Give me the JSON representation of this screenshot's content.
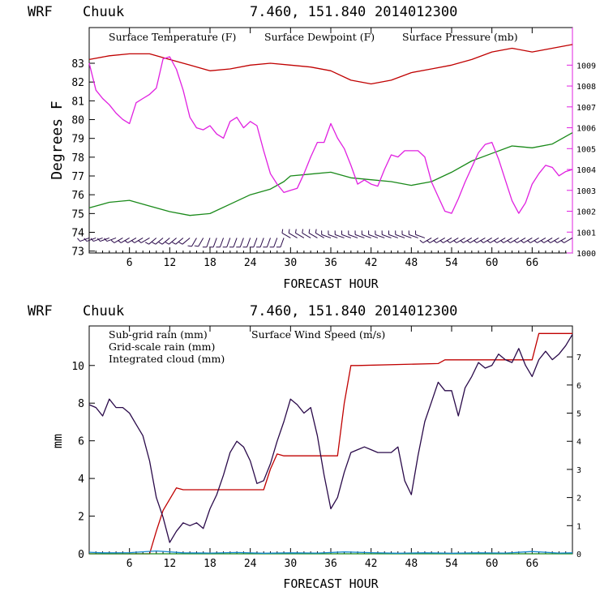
{
  "chart_data": [
    {
      "type": "line",
      "header": {
        "model": "WRF",
        "location": "Chuuk",
        "coords": "7.460, 151.840",
        "init": "2014012300"
      },
      "xlabel": "FORECAST HOUR",
      "ylabel": "Degrees F",
      "xlim": [
        0,
        72
      ],
      "xticks": [
        "6",
        "12",
        "18",
        "24",
        "30",
        "36",
        "42",
        "48",
        "54",
        "60",
        "66"
      ],
      "ylim": [
        72.9,
        84.9
      ],
      "yticks": [
        "73",
        "74",
        "75",
        "76",
        "77",
        "78",
        "79",
        "80",
        "81",
        "82",
        "83"
      ],
      "y2lim": [
        1000,
        1010.8
      ],
      "y2ticks": [
        "1000",
        "1001",
        "1002",
        "1003",
        "1004",
        "1005",
        "1006",
        "1007",
        "1008",
        "1009"
      ],
      "legend": [
        "Surface Temperature (F)",
        "Surface Dewpoint (F)",
        "Surface Pressure (mb)"
      ],
      "colors": {
        "temperature": "#c00000",
        "dewpoint": "#1a8a1a",
        "pressure": "#e020e0",
        "barbs": "#2a0a4a"
      },
      "series": [
        {
          "name": "Surface Temperature (F)",
          "axis": "left",
          "x": [
            0,
            3,
            6,
            9,
            12,
            15,
            18,
            21,
            24,
            27,
            30,
            33,
            36,
            39,
            42,
            45,
            48,
            51,
            54,
            57,
            60,
            63,
            66,
            69,
            72
          ],
          "values": [
            83.2,
            83.4,
            83.5,
            83.5,
            83.2,
            82.9,
            82.6,
            82.7,
            82.9,
            83.0,
            82.9,
            82.8,
            82.6,
            82.1,
            81.9,
            82.1,
            82.5,
            82.7,
            82.9,
            83.2,
            83.6,
            83.8,
            83.6,
            83.8,
            84.0
          ]
        },
        {
          "name": "Surface Dewpoint (F)",
          "axis": "left",
          "x": [
            0,
            3,
            6,
            9,
            12,
            15,
            18,
            21,
            24,
            27,
            29,
            30,
            33,
            36,
            39,
            42,
            45,
            48,
            51,
            54,
            57,
            60,
            63,
            66,
            69,
            72
          ],
          "values": [
            75.3,
            75.6,
            75.7,
            75.4,
            75.1,
            74.9,
            75.0,
            75.5,
            76.0,
            76.3,
            76.7,
            77.0,
            77.1,
            77.2,
            76.9,
            76.8,
            76.7,
            76.5,
            76.7,
            77.2,
            77.8,
            78.2,
            78.6,
            78.5,
            78.7,
            79.3
          ]
        },
        {
          "name": "Surface Pressure (mb)",
          "axis": "right",
          "x": [
            0,
            1,
            2,
            3,
            4,
            5,
            6,
            7,
            8,
            9,
            10,
            11,
            12,
            13,
            14,
            15,
            16,
            17,
            18,
            19,
            20,
            21,
            22,
            23,
            24,
            25,
            26,
            27,
            28,
            29,
            30,
            31,
            32,
            33,
            34,
            35,
            36,
            37,
            38,
            39,
            40,
            41,
            42,
            43,
            44,
            45,
            46,
            47,
            48,
            49,
            50,
            51,
            52,
            53,
            54,
            55,
            56,
            57,
            58,
            59,
            60,
            61,
            62,
            63,
            64,
            65,
            66,
            67,
            68,
            69,
            70,
            71,
            72
          ],
          "values": [
            1009.1,
            1007.8,
            1007.4,
            1007.1,
            1006.7,
            1006.4,
            1006.2,
            1007.2,
            1007.4,
            1007.6,
            1007.9,
            1009.3,
            1009.4,
            1008.8,
            1007.8,
            1006.5,
            1006.0,
            1005.9,
            1006.1,
            1005.7,
            1005.5,
            1006.3,
            1006.5,
            1006.0,
            1006.3,
            1006.1,
            1004.9,
            1003.8,
            1003.3,
            1002.9,
            1003.0,
            1003.1,
            1003.8,
            1004.6,
            1005.3,
            1005.3,
            1006.2,
            1005.5,
            1005.0,
            1004.2,
            1003.3,
            1003.5,
            1003.3,
            1003.2,
            1004.0,
            1004.7,
            1004.6,
            1004.9,
            1004.9,
            1004.9,
            1004.6,
            1003.4,
            1002.7,
            1002.0,
            1001.9,
            1002.6,
            1003.4,
            1004.1,
            1004.8,
            1005.2,
            1005.3,
            1004.5,
            1003.5,
            1002.5,
            1001.9,
            1002.4,
            1003.3,
            1003.8,
            1004.2,
            1004.1,
            1003.7,
            1003.9,
            1004.0
          ]
        }
      ],
      "wind_barbs": {
        "level_y": 73.7,
        "x": [
          0,
          1,
          2,
          3,
          4,
          5,
          6,
          7,
          8,
          9,
          10,
          11,
          12,
          13,
          14,
          15,
          16,
          17,
          18,
          19,
          20,
          21,
          22,
          23,
          24,
          25,
          26,
          27,
          28,
          29,
          30,
          31,
          32,
          33,
          34,
          35,
          36,
          37,
          38,
          39,
          40,
          41,
          42,
          43,
          44,
          45,
          46,
          47,
          48,
          49,
          50,
          51,
          52,
          53,
          54,
          55,
          56,
          57,
          58,
          59,
          60,
          61,
          62,
          63,
          64,
          65,
          66,
          67,
          68,
          69,
          70,
          71,
          72
        ],
        "directions_deg": [
          250,
          250,
          250,
          250,
          250,
          240,
          240,
          240,
          240,
          240,
          230,
          230,
          230,
          230,
          230,
          230,
          210,
          210,
          200,
          200,
          200,
          200,
          200,
          200,
          200,
          200,
          200,
          200,
          200,
          200,
          300,
          300,
          300,
          300,
          300,
          300,
          290,
          290,
          290,
          290,
          290,
          290,
          290,
          290,
          290,
          290,
          290,
          290,
          290,
          290,
          290,
          240,
          240,
          240,
          240,
          240,
          240,
          240,
          240,
          240,
          240,
          240,
          240,
          240,
          240,
          240,
          240,
          240,
          240,
          240,
          240,
          240,
          240
        ]
      }
    },
    {
      "type": "line",
      "header": {
        "model": "WRF",
        "location": "Chuuk",
        "coords": "7.460, 151.840",
        "init": "2014012300"
      },
      "xlabel": "FORECAST HOUR",
      "ylabel": "mm",
      "xlim": [
        0,
        72
      ],
      "xticks": [
        "6",
        "12",
        "18",
        "24",
        "30",
        "36",
        "42",
        "48",
        "54",
        "60",
        "66"
      ],
      "ylim": [
        0,
        12.1
      ],
      "yticks": [
        "0",
        "2",
        "4",
        "6",
        "8",
        "10"
      ],
      "y2lim": [
        0,
        8.1
      ],
      "y2ticks": [
        "0",
        "1",
        "2",
        "3",
        "4",
        "5",
        "6",
        "7"
      ],
      "legend": [
        "Sub-grid rain (mm)",
        "Grid-scale rain (mm)",
        "Integrated cloud (mm)",
        "Surface Wind Speed (m/s)"
      ],
      "colors": {
        "subgrid": "#c00000",
        "gridscale": "#1a8a1a",
        "cloud": "#1a8ad0",
        "wind": "#2a0a4a"
      },
      "series": [
        {
          "name": "Sub-grid rain (mm)",
          "axis": "left",
          "x": [
            0,
            9,
            10,
            11,
            12,
            13,
            14,
            26,
            27,
            28,
            29,
            37,
            38,
            39,
            40,
            52,
            53,
            66,
            67,
            72
          ],
          "values": [
            0,
            0,
            1.2,
            2.3,
            2.9,
            3.5,
            3.4,
            3.4,
            4.5,
            5.3,
            5.2,
            5.2,
            8.0,
            10.0,
            10.0,
            10.1,
            10.3,
            10.3,
            11.7,
            11.7
          ]
        },
        {
          "name": "Grid-scale rain (mm)",
          "axis": "left",
          "x": [
            0,
            72
          ],
          "values": [
            0,
            0
          ]
        },
        {
          "name": "Integrated cloud (mm)",
          "axis": "left",
          "x": [
            0,
            2,
            6,
            10,
            14,
            18,
            22,
            26,
            30,
            34,
            38,
            42,
            46,
            50,
            54,
            58,
            62,
            66,
            70,
            72
          ],
          "values": [
            0.08,
            0.05,
            0.06,
            0.15,
            0.05,
            0.04,
            0.07,
            0.03,
            0.05,
            0.04,
            0.1,
            0.06,
            0.03,
            0.05,
            0.03,
            0.05,
            0.04,
            0.12,
            0.04,
            0.05
          ]
        },
        {
          "name": "Surface Wind Speed (m/s)",
          "axis": "right",
          "x": [
            0,
            1,
            2,
            3,
            4,
            5,
            6,
            7,
            8,
            9,
            10,
            11,
            12,
            13,
            14,
            15,
            16,
            17,
            18,
            19,
            20,
            21,
            22,
            23,
            24,
            25,
            26,
            27,
            28,
            29,
            30,
            31,
            32,
            33,
            34,
            35,
            36,
            37,
            38,
            39,
            40,
            41,
            42,
            43,
            44,
            45,
            46,
            47,
            48,
            49,
            50,
            51,
            52,
            53,
            54,
            55,
            56,
            57,
            58,
            59,
            60,
            61,
            62,
            63,
            64,
            65,
            66,
            67,
            68,
            69,
            70,
            71,
            72
          ],
          "values": [
            5.3,
            5.2,
            4.9,
            5.5,
            5.2,
            5.2,
            5.0,
            4.6,
            4.2,
            3.3,
            2.0,
            1.3,
            0.4,
            0.8,
            1.1,
            1.0,
            1.1,
            0.9,
            1.6,
            2.1,
            2.8,
            3.6,
            4.0,
            3.8,
            3.3,
            2.5,
            2.6,
            3.2,
            4.0,
            4.7,
            5.5,
            5.3,
            5.0,
            5.2,
            4.2,
            2.8,
            1.6,
            2.0,
            2.9,
            3.6,
            3.7,
            3.8,
            3.7,
            3.6,
            3.6,
            3.6,
            3.8,
            2.6,
            2.1,
            3.5,
            4.7,
            5.4,
            6.1,
            5.8,
            5.8,
            4.9,
            5.9,
            6.3,
            6.8,
            6.6,
            6.7,
            7.1,
            6.9,
            6.8,
            7.3,
            6.7,
            6.3,
            6.9,
            7.2,
            6.9,
            7.1,
            7.4,
            7.8
          ]
        }
      ]
    }
  ]
}
